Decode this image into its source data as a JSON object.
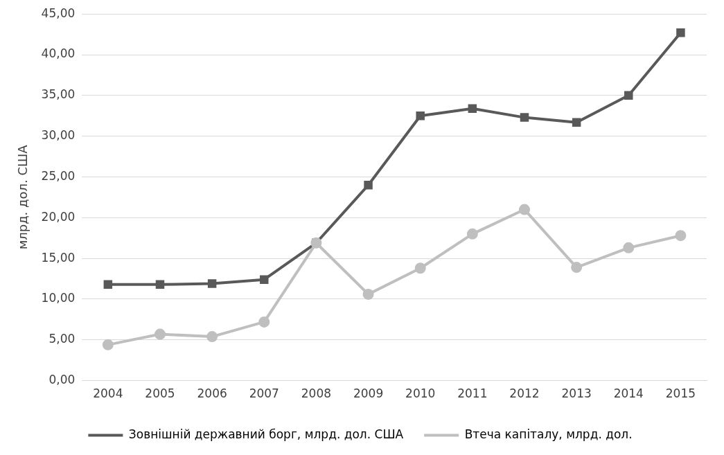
{
  "chart_data": {
    "type": "line",
    "ylabel": "млрд. дол. США",
    "categories": [
      "2004",
      "2005",
      "2006",
      "2007",
      "2008",
      "2009",
      "2010",
      "2011",
      "2012",
      "2013",
      "2014",
      "2015"
    ],
    "series": [
      {
        "name": "Зовнішній державний борг, млрд. дол. США",
        "color": "#595959",
        "marker": "square",
        "values": [
          11.8,
          11.8,
          11.9,
          12.4,
          16.9,
          24.0,
          32.5,
          33.4,
          32.3,
          31.7,
          35.0,
          42.7
        ]
      },
      {
        "name": "Втеча капіталу, млрд. дол.",
        "color": "#bfbfbf",
        "marker": "circle",
        "values": [
          4.4,
          5.7,
          5.4,
          7.2,
          16.9,
          10.6,
          13.8,
          18.0,
          21.0,
          13.9,
          16.3,
          17.8
        ]
      }
    ],
    "ylim": [
      0,
      45
    ],
    "yticks": [
      {
        "value": 0,
        "label": "0,00"
      },
      {
        "value": 5,
        "label": "5,00"
      },
      {
        "value": 10,
        "label": "10,00"
      },
      {
        "value": 15,
        "label": "15,00"
      },
      {
        "value": 20,
        "label": "20,00"
      },
      {
        "value": 25,
        "label": "25,00"
      },
      {
        "value": 30,
        "label": "30,00"
      },
      {
        "value": 35,
        "label": "35,00"
      },
      {
        "value": 40,
        "label": "40,00"
      },
      {
        "value": 45,
        "label": "45,00"
      }
    ],
    "grid": "y",
    "legend": "bottom",
    "line_style": "solid"
  }
}
